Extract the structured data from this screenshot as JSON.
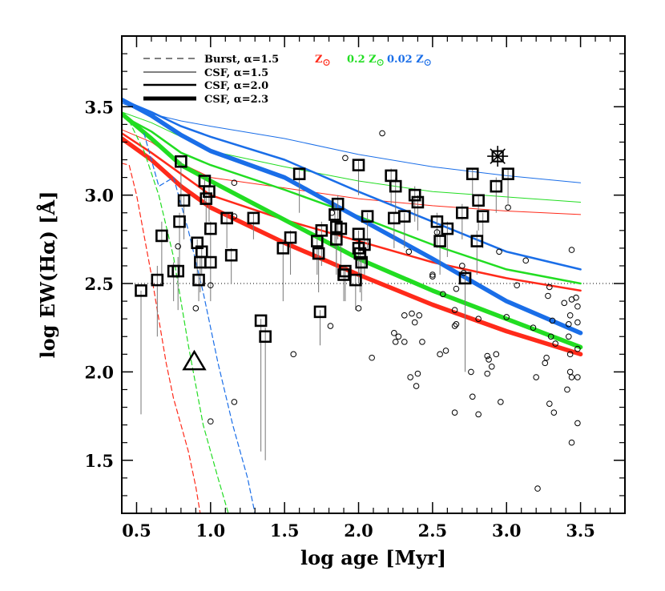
{
  "chart_data": {
    "type": "line",
    "title": "",
    "xlabel": "log age [Myr]",
    "ylabel": "log EW(Hα) [Å]",
    "xlim": [
      0.4,
      3.8
    ],
    "ylim": [
      1.2,
      3.9
    ],
    "xticks": [
      0.5,
      1.0,
      1.5,
      2.0,
      2.5,
      3.0,
      3.5
    ],
    "yticks": [
      1.5,
      2.0,
      2.5,
      3.0,
      3.5
    ],
    "xtick_labels": [
      "0.5",
      "1.0",
      "1.5",
      "2.0",
      "2.5",
      "3.0",
      "3.5"
    ],
    "ytick_labels": [
      "1.5",
      "2.0",
      "2.5",
      "3.0",
      "3.5"
    ],
    "threshold_y": 2.5,
    "colors": {
      "solar": "#ff2a1a",
      "z02": "#22dd22",
      "z002": "#1a6ee8"
    },
    "legend_styles": [
      {
        "label": "Burst, α=1.5",
        "style": "dashed",
        "width": 1
      },
      {
        "label": "CSF, α=1.5",
        "style": "solid",
        "width": 1
      },
      {
        "label": "CSF, α=2.0",
        "style": "solid",
        "width": 2.5
      },
      {
        "label": "CSF, α=2.3",
        "style": "solid",
        "width": 5
      }
    ],
    "legend_metallicity": [
      {
        "label": "Z",
        "color": "#ff2a1a"
      },
      {
        "label": "0.2 Z",
        "color": "#22dd22"
      },
      {
        "label": "0.02 Z",
        "color": "#1a6ee8"
      }
    ],
    "series": [
      {
        "model": "csf",
        "alpha": 1.5,
        "metallicity": "solar",
        "x": [
          0.4,
          0.6,
          0.8,
          1.0,
          1.5,
          2.0,
          2.5,
          3.0,
          3.5
        ],
        "y": [
          3.37,
          3.3,
          3.18,
          3.1,
          3.04,
          2.98,
          2.94,
          2.91,
          2.89
        ]
      },
      {
        "model": "csf",
        "alpha": 1.5,
        "metallicity": "z02",
        "x": [
          0.4,
          0.6,
          0.8,
          1.0,
          1.5,
          2.0,
          2.5,
          3.0,
          3.5
        ],
        "y": [
          3.47,
          3.41,
          3.33,
          3.25,
          3.16,
          3.08,
          3.02,
          2.99,
          2.96
        ]
      },
      {
        "model": "csf",
        "alpha": 1.5,
        "metallicity": "z002",
        "x": [
          0.4,
          0.6,
          0.8,
          1.0,
          1.5,
          2.0,
          2.5,
          3.0,
          3.5
        ],
        "y": [
          3.52,
          3.46,
          3.42,
          3.39,
          3.32,
          3.23,
          3.16,
          3.11,
          3.07
        ]
      },
      {
        "model": "csf",
        "alpha": 2.0,
        "metallicity": "solar",
        "x": [
          0.4,
          0.6,
          0.8,
          1.0,
          1.5,
          2.0,
          2.5,
          3.0,
          3.5
        ],
        "y": [
          3.35,
          3.24,
          3.12,
          3.0,
          2.86,
          2.74,
          2.62,
          2.53,
          2.46
        ]
      },
      {
        "model": "csf",
        "alpha": 2.0,
        "metallicity": "z02",
        "x": [
          0.4,
          0.6,
          0.8,
          1.0,
          1.5,
          2.0,
          2.5,
          3.0,
          3.5
        ],
        "y": [
          3.45,
          3.36,
          3.24,
          3.17,
          3.03,
          2.88,
          2.72,
          2.58,
          2.5
        ]
      },
      {
        "model": "csf",
        "alpha": 2.0,
        "metallicity": "z002",
        "x": [
          0.4,
          0.6,
          0.8,
          1.0,
          1.5,
          2.0,
          2.5,
          3.0,
          3.5
        ],
        "y": [
          3.54,
          3.47,
          3.39,
          3.33,
          3.2,
          3.02,
          2.85,
          2.68,
          2.58
        ]
      },
      {
        "model": "csf",
        "alpha": 2.3,
        "metallicity": "solar",
        "x": [
          0.4,
          0.6,
          0.8,
          1.0,
          1.5,
          2.0,
          2.5,
          3.0,
          3.5
        ],
        "y": [
          3.32,
          3.2,
          3.05,
          2.93,
          2.73,
          2.55,
          2.38,
          2.23,
          2.1
        ]
      },
      {
        "model": "csf",
        "alpha": 2.3,
        "metallicity": "z02",
        "x": [
          0.4,
          0.6,
          0.8,
          1.0,
          1.5,
          2.0,
          2.5,
          3.0,
          3.5
        ],
        "y": [
          3.46,
          3.32,
          3.17,
          3.08,
          2.86,
          2.64,
          2.46,
          2.3,
          2.14
        ]
      },
      {
        "model": "csf",
        "alpha": 2.3,
        "metallicity": "z002",
        "x": [
          0.4,
          0.6,
          0.8,
          1.0,
          1.5,
          2.0,
          2.5,
          3.0,
          3.5
        ],
        "y": [
          3.54,
          3.45,
          3.34,
          3.25,
          3.1,
          2.87,
          2.64,
          2.4,
          2.22
        ]
      },
      {
        "model": "burst",
        "alpha": 1.5,
        "metallicity": "solar",
        "x": [
          0.4,
          0.45,
          0.5,
          0.6,
          0.7,
          0.75,
          0.8,
          0.85,
          0.9,
          0.93
        ],
        "y": [
          3.18,
          3.17,
          3.0,
          2.55,
          2.05,
          1.85,
          1.7,
          1.55,
          1.35,
          1.2
        ]
      },
      {
        "model": "burst",
        "alpha": 1.5,
        "metallicity": "z02",
        "x": [
          0.45,
          0.55,
          0.65,
          0.75,
          0.85,
          0.95,
          1.05,
          1.12
        ],
        "y": [
          3.42,
          3.25,
          3.0,
          2.65,
          2.15,
          1.7,
          1.4,
          1.2
        ]
      },
      {
        "model": "burst",
        "alpha": 1.5,
        "metallicity": "z002",
        "x": [
          0.55,
          0.65,
          0.75,
          0.85,
          0.95,
          1.05,
          1.15,
          1.25,
          1.3
        ],
        "y": [
          3.35,
          3.05,
          3.1,
          2.8,
          2.45,
          2.05,
          1.7,
          1.4,
          1.2
        ]
      }
    ],
    "squares": [
      {
        "x": 0.53,
        "y": 2.46,
        "lo": 1.76,
        "hi": 2.46
      },
      {
        "x": 0.64,
        "y": 2.52,
        "lo": 2.2,
        "hi": 2.6
      },
      {
        "x": 0.67,
        "y": 2.77,
        "lo": 2.5,
        "hi": 2.85
      },
      {
        "x": 0.75,
        "y": 2.57,
        "lo": 2.4,
        "hi": 2.62
      },
      {
        "x": 0.78,
        "y": 2.57,
        "lo": 2.35,
        "hi": 2.65
      },
      {
        "x": 0.79,
        "y": 2.85,
        "lo": 2.6,
        "hi": 2.9
      },
      {
        "x": 0.8,
        "y": 3.19,
        "lo": 2.95,
        "hi": 3.19
      },
      {
        "x": 0.82,
        "y": 2.97,
        "lo": 2.75,
        "hi": 3.0
      },
      {
        "x": 0.91,
        "y": 2.73,
        "lo": 2.55,
        "hi": 2.75
      },
      {
        "x": 0.92,
        "y": 2.52,
        "lo": 2.4,
        "hi": 2.55
      },
      {
        "x": 0.93,
        "y": 2.62,
        "lo": 2.45,
        "hi": 2.65
      },
      {
        "x": 0.94,
        "y": 2.68,
        "lo": 2.55,
        "hi": 2.7
      },
      {
        "x": 0.96,
        "y": 3.08,
        "lo": 2.95,
        "hi": 3.1
      },
      {
        "x": 0.97,
        "y": 2.98,
        "lo": 2.8,
        "hi": 3.0
      },
      {
        "x": 0.99,
        "y": 3.02,
        "lo": 2.85,
        "hi": 3.05
      },
      {
        "x": 1.0,
        "y": 2.81,
        "lo": 2.6,
        "hi": 2.85
      },
      {
        "x": 1.0,
        "y": 2.62,
        "lo": 2.4,
        "hi": 2.65
      },
      {
        "x": 1.11,
        "y": 2.87,
        "lo": 2.7,
        "hi": 2.9
      },
      {
        "x": 1.14,
        "y": 2.66,
        "lo": 2.5,
        "hi": 2.7
      },
      {
        "x": 1.29,
        "y": 2.87,
        "lo": 2.75,
        "hi": 2.9
      },
      {
        "x": 1.34,
        "y": 2.29,
        "lo": 1.55,
        "hi": 2.3
      },
      {
        "x": 1.37,
        "y": 2.2,
        "lo": 1.5,
        "hi": 2.25
      },
      {
        "x": 1.49,
        "y": 2.7,
        "lo": 2.4,
        "hi": 2.75
      },
      {
        "x": 1.54,
        "y": 2.76,
        "lo": 2.55,
        "hi": 2.8
      },
      {
        "x": 1.6,
        "y": 3.12,
        "lo": 2.9,
        "hi": 3.15
      },
      {
        "x": 1.72,
        "y": 2.74,
        "lo": 2.55,
        "hi": 2.8
      },
      {
        "x": 1.73,
        "y": 2.67,
        "lo": 2.45,
        "hi": 2.7
      },
      {
        "x": 1.74,
        "y": 2.34,
        "lo": 2.15,
        "hi": 2.35
      },
      {
        "x": 1.75,
        "y": 2.8,
        "lo": 2.6,
        "hi": 2.85
      },
      {
        "x": 1.84,
        "y": 2.89,
        "lo": 2.7,
        "hi": 2.95
      },
      {
        "x": 1.85,
        "y": 2.82,
        "lo": 2.6,
        "hi": 2.85
      },
      {
        "x": 1.85,
        "y": 2.75,
        "lo": 2.55,
        "hi": 2.8
      },
      {
        "x": 1.86,
        "y": 2.95,
        "lo": 2.75,
        "hi": 3.0
      },
      {
        "x": 1.88,
        "y": 2.81,
        "lo": 2.6,
        "hi": 2.85
      },
      {
        "x": 1.9,
        "y": 2.55,
        "lo": 2.4,
        "hi": 2.6
      },
      {
        "x": 1.91,
        "y": 2.57,
        "lo": 2.4,
        "hi": 2.6
      },
      {
        "x": 1.98,
        "y": 2.52,
        "lo": 2.35,
        "hi": 2.55
      },
      {
        "x": 2.0,
        "y": 3.17,
        "lo": 3.0,
        "hi": 3.2
      },
      {
        "x": 2.0,
        "y": 2.78,
        "lo": 2.6,
        "hi": 2.8
      },
      {
        "x": 2.0,
        "y": 2.7,
        "lo": 2.5,
        "hi": 2.75
      },
      {
        "x": 2.01,
        "y": 2.67,
        "lo": 2.45,
        "hi": 2.7
      },
      {
        "x": 2.02,
        "y": 2.62,
        "lo": 2.4,
        "hi": 2.65
      },
      {
        "x": 2.04,
        "y": 2.72,
        "lo": 2.55,
        "hi": 2.75
      },
      {
        "x": 2.06,
        "y": 2.88,
        "lo": 2.7,
        "hi": 2.9
      },
      {
        "x": 2.22,
        "y": 3.11,
        "lo": 2.95,
        "hi": 3.15
      },
      {
        "x": 2.24,
        "y": 2.87,
        "lo": 2.7,
        "hi": 2.9
      },
      {
        "x": 2.25,
        "y": 3.05,
        "lo": 2.9,
        "hi": 3.1
      },
      {
        "x": 2.31,
        "y": 2.88,
        "lo": 2.7,
        "hi": 2.9
      },
      {
        "x": 2.38,
        "y": 3.0,
        "lo": 2.85,
        "hi": 3.05
      },
      {
        "x": 2.4,
        "y": 2.96,
        "lo": 2.8,
        "hi": 3.0
      },
      {
        "x": 2.53,
        "y": 2.85,
        "lo": 2.7,
        "hi": 2.9
      },
      {
        "x": 2.55,
        "y": 2.74,
        "lo": 2.55,
        "hi": 2.8
      },
      {
        "x": 2.6,
        "y": 2.81,
        "lo": 2.65,
        "hi": 2.85
      },
      {
        "x": 2.7,
        "y": 2.9,
        "lo": 2.75,
        "hi": 2.95
      },
      {
        "x": 2.72,
        "y": 2.53,
        "lo": 2.0,
        "hi": 2.55
      },
      {
        "x": 2.77,
        "y": 3.12,
        "lo": 2.95,
        "hi": 3.15
      },
      {
        "x": 2.8,
        "y": 2.74,
        "lo": 2.55,
        "hi": 2.8
      },
      {
        "x": 2.81,
        "y": 2.97,
        "lo": 2.8,
        "hi": 3.0
      },
      {
        "x": 2.84,
        "y": 2.88,
        "lo": 2.7,
        "hi": 2.9
      },
      {
        "x": 2.93,
        "y": 3.05,
        "lo": 2.9,
        "hi": 3.1
      },
      {
        "x": 3.01,
        "y": 3.12,
        "lo": 2.95,
        "hi": 3.15
      }
    ],
    "circles": [
      {
        "x": 0.78,
        "y": 2.71
      },
      {
        "x": 0.9,
        "y": 2.36
      },
      {
        "x": 1.0,
        "y": 2.49
      },
      {
        "x": 1.0,
        "y": 1.72
      },
      {
        "x": 1.16,
        "y": 3.07
      },
      {
        "x": 1.16,
        "y": 1.83
      },
      {
        "x": 1.16,
        "y": 2.88
      },
      {
        "x": 1.56,
        "y": 2.1
      },
      {
        "x": 1.81,
        "y": 2.26
      },
      {
        "x": 1.82,
        "y": 2.9
      },
      {
        "x": 1.91,
        "y": 3.21
      },
      {
        "x": 2.0,
        "y": 2.36
      },
      {
        "x": 2.09,
        "y": 2.08
      },
      {
        "x": 2.16,
        "y": 3.35
      },
      {
        "x": 2.24,
        "y": 2.22
      },
      {
        "x": 2.25,
        "y": 2.17
      },
      {
        "x": 2.27,
        "y": 2.2
      },
      {
        "x": 2.31,
        "y": 2.17
      },
      {
        "x": 2.31,
        "y": 2.32
      },
      {
        "x": 2.34,
        "y": 2.68
      },
      {
        "x": 2.35,
        "y": 1.97
      },
      {
        "x": 2.36,
        "y": 2.33
      },
      {
        "x": 2.38,
        "y": 2.28
      },
      {
        "x": 2.39,
        "y": 1.92
      },
      {
        "x": 2.4,
        "y": 1.99
      },
      {
        "x": 2.41,
        "y": 2.32
      },
      {
        "x": 2.43,
        "y": 2.17
      },
      {
        "x": 2.5,
        "y": 2.55
      },
      {
        "x": 2.5,
        "y": 2.54
      },
      {
        "x": 2.53,
        "y": 2.79
      },
      {
        "x": 2.55,
        "y": 2.1
      },
      {
        "x": 2.57,
        "y": 2.44
      },
      {
        "x": 2.59,
        "y": 2.12
      },
      {
        "x": 2.65,
        "y": 2.26
      },
      {
        "x": 2.65,
        "y": 2.35
      },
      {
        "x": 2.65,
        "y": 1.77
      },
      {
        "x": 2.66,
        "y": 2.27
      },
      {
        "x": 2.66,
        "y": 2.47
      },
      {
        "x": 2.7,
        "y": 2.6
      },
      {
        "x": 2.71,
        "y": 2.56
      },
      {
        "x": 2.76,
        "y": 2.0
      },
      {
        "x": 2.77,
        "y": 1.86
      },
      {
        "x": 2.81,
        "y": 1.76
      },
      {
        "x": 2.81,
        "y": 2.3
      },
      {
        "x": 2.87,
        "y": 2.09
      },
      {
        "x": 2.87,
        "y": 1.99
      },
      {
        "x": 2.88,
        "y": 2.07
      },
      {
        "x": 2.9,
        "y": 2.03
      },
      {
        "x": 2.93,
        "y": 2.1
      },
      {
        "x": 2.95,
        "y": 2.68
      },
      {
        "x": 2.96,
        "y": 1.83
      },
      {
        "x": 3.0,
        "y": 2.31
      },
      {
        "x": 3.01,
        "y": 2.93
      },
      {
        "x": 3.07,
        "y": 2.49
      },
      {
        "x": 3.13,
        "y": 2.63
      },
      {
        "x": 3.18,
        "y": 2.25
      },
      {
        "x": 3.2,
        "y": 1.97
      },
      {
        "x": 3.21,
        "y": 1.34
      },
      {
        "x": 3.26,
        "y": 2.05
      },
      {
        "x": 3.27,
        "y": 2.08
      },
      {
        "x": 3.28,
        "y": 2.43
      },
      {
        "x": 3.29,
        "y": 2.48
      },
      {
        "x": 3.29,
        "y": 1.82
      },
      {
        "x": 3.3,
        "y": 2.2
      },
      {
        "x": 3.31,
        "y": 2.29
      },
      {
        "x": 3.32,
        "y": 1.77
      },
      {
        "x": 3.33,
        "y": 2.16
      },
      {
        "x": 3.39,
        "y": 2.39
      },
      {
        "x": 3.41,
        "y": 1.9
      },
      {
        "x": 3.42,
        "y": 2.2
      },
      {
        "x": 3.42,
        "y": 2.27
      },
      {
        "x": 3.43,
        "y": 2.32
      },
      {
        "x": 3.43,
        "y": 2.1
      },
      {
        "x": 3.43,
        "y": 2.0
      },
      {
        "x": 3.44,
        "y": 2.41
      },
      {
        "x": 3.44,
        "y": 2.69
      },
      {
        "x": 3.44,
        "y": 1.97
      },
      {
        "x": 3.44,
        "y": 1.6
      },
      {
        "x": 3.47,
        "y": 2.42
      },
      {
        "x": 3.48,
        "y": 2.28
      },
      {
        "x": 3.48,
        "y": 2.13
      },
      {
        "x": 3.48,
        "y": 1.97
      },
      {
        "x": 3.48,
        "y": 1.71
      },
      {
        "x": 3.48,
        "y": 2.37
      }
    ],
    "triangle": {
      "x": 0.89,
      "y": 2.06
    },
    "star": {
      "x": 2.94,
      "y": 3.22
    }
  }
}
